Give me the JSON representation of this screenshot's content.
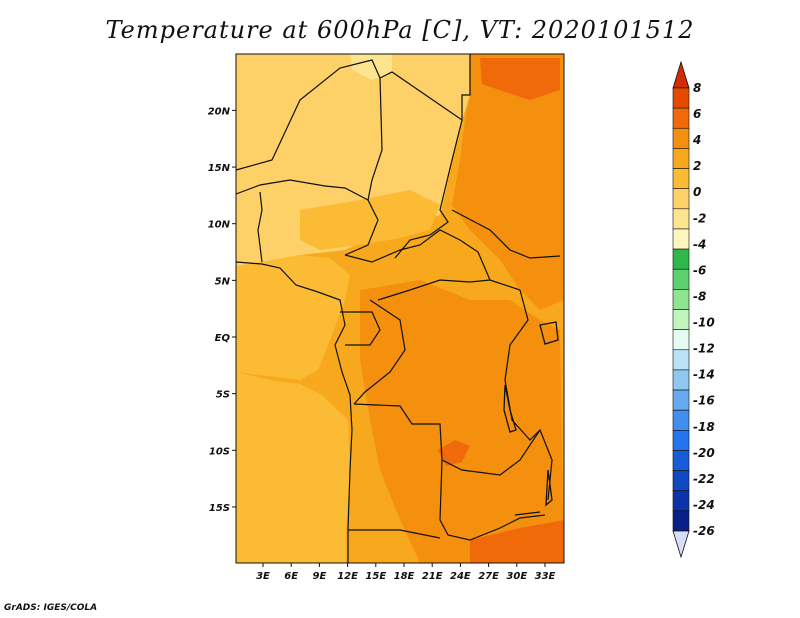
{
  "title": "Temperature at 600hPa [C], VT: 2020101512",
  "credit": "GrADS: IGES/COLA",
  "map": {
    "lat_labels": [
      {
        "label": "20N",
        "lat": 20
      },
      {
        "label": "15N",
        "lat": 15
      },
      {
        "label": "10N",
        "lat": 10
      },
      {
        "label": "5N",
        "lat": 5
      },
      {
        "label": "EQ",
        "lat": 0
      },
      {
        "label": "5S",
        "lat": -5
      },
      {
        "label": "10S",
        "lat": -10
      },
      {
        "label": "15S",
        "lat": -15
      }
    ],
    "lon_labels": [
      {
        "label": "3E",
        "lon": 3
      },
      {
        "label": "6E",
        "lon": 6
      },
      {
        "label": "9E",
        "lon": 9
      },
      {
        "label": "12E",
        "lon": 12
      },
      {
        "label": "15E",
        "lon": 15
      },
      {
        "label": "18E",
        "lon": 18
      },
      {
        "label": "21E",
        "lon": 21
      },
      {
        "label": "24E",
        "lon": 24
      },
      {
        "label": "27E",
        "lon": 27
      },
      {
        "label": "30E",
        "lon": 30
      },
      {
        "label": "33E",
        "lon": 33
      }
    ]
  },
  "colorbar": {
    "levels": [
      {
        "label": "8"
      },
      {
        "label": "6"
      },
      {
        "label": "4"
      },
      {
        "label": "2"
      },
      {
        "label": "0"
      },
      {
        "label": "-2"
      },
      {
        "label": "-4"
      },
      {
        "label": "-6"
      },
      {
        "label": "-8"
      },
      {
        "label": "-10"
      },
      {
        "label": "-12"
      },
      {
        "label": "-14"
      },
      {
        "label": "-16"
      },
      {
        "label": "-18"
      },
      {
        "label": "-20"
      },
      {
        "label": "-22"
      },
      {
        "label": "-24"
      },
      {
        "label": "-26"
      }
    ],
    "colors": [
      "#e64a00",
      "#f06a0a",
      "#f5900e",
      "#f8a81c",
      "#fbbb35",
      "#fdd168",
      "#fde590",
      "#fdf6bf",
      "#2fb94a",
      "#5fd070",
      "#8fe48f",
      "#c2f4c0",
      "#e7fbf5",
      "#b8e2f8",
      "#90c8f2",
      "#66aaf0",
      "#3f8ef0",
      "#2574ee",
      "#175cd8",
      "#0f48c2",
      "#0b34a8",
      "#082088"
    ],
    "top_arrow_color": "#d42a00",
    "bottom_arrow_color": "#d8ddf8"
  }
}
